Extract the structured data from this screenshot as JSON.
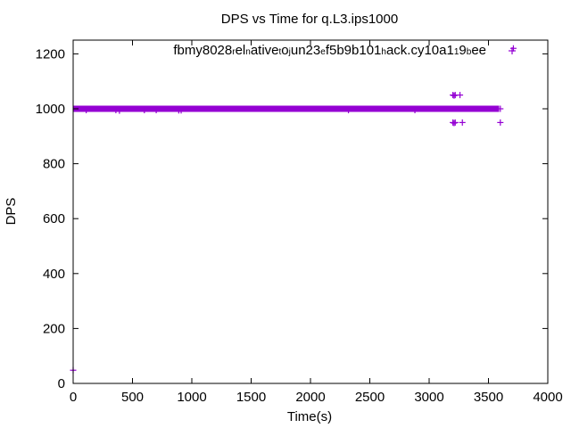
{
  "chart_data": {
    "type": "scatter",
    "title": "DPS vs Time for q.L3.ips1000",
    "xlabel": "Time(s)",
    "ylabel": "DPS",
    "xlim": [
      0,
      4000
    ],
    "ylim": [
      0,
      1250
    ],
    "xticks": [
      0,
      500,
      1000,
      1500,
      2000,
      2500,
      3000,
      3500,
      4000
    ],
    "yticks": [
      0,
      200,
      400,
      600,
      800,
      1000,
      1200
    ],
    "grid": false,
    "legend_placement": "top-right",
    "series": [
      {
        "name_parts": [
          {
            "t": "fbmy8028",
            "sub": false
          },
          {
            "t": "r",
            "sub": true
          },
          {
            "t": "el",
            "sub": false
          },
          {
            "t": "n",
            "sub": true
          },
          {
            "t": "ative",
            "sub": false
          },
          {
            "t": "t",
            "sub": true
          },
          {
            "t": "o",
            "sub": false
          },
          {
            "t": "j",
            "sub": true
          },
          {
            "t": "un23",
            "sub": false
          },
          {
            "t": "e",
            "sub": true
          },
          {
            "t": "f5b9b101",
            "sub": false
          },
          {
            "t": "h",
            "sub": true
          },
          {
            "t": "ack.cy10a1",
            "sub": false
          },
          {
            "t": "1",
            "sub": true
          },
          {
            "t": "9",
            "sub": false
          },
          {
            "t": "b",
            "sub": true
          },
          {
            "t": "ee",
            "sub": false
          }
        ],
        "color": "#9400d3",
        "marker": "plus",
        "dense_band": {
          "x_start": 0,
          "x_end": 3590,
          "y": 1000
        },
        "points": [
          [
            0,
            48
          ],
          [
            110,
            995
          ],
          [
            360,
            995
          ],
          [
            390,
            993
          ],
          [
            600,
            995
          ],
          [
            700,
            995
          ],
          [
            890,
            994
          ],
          [
            910,
            994
          ],
          [
            2320,
            995
          ],
          [
            2880,
            995
          ],
          [
            3200,
            1050
          ],
          [
            3210,
            1048
          ],
          [
            3220,
            1050
          ],
          [
            3260,
            1050
          ],
          [
            3200,
            950
          ],
          [
            3210,
            948
          ],
          [
            3220,
            950
          ],
          [
            3280,
            950
          ],
          [
            3600,
            950
          ],
          [
            3600,
            1000
          ],
          [
            3710,
            1220
          ]
        ]
      }
    ]
  }
}
